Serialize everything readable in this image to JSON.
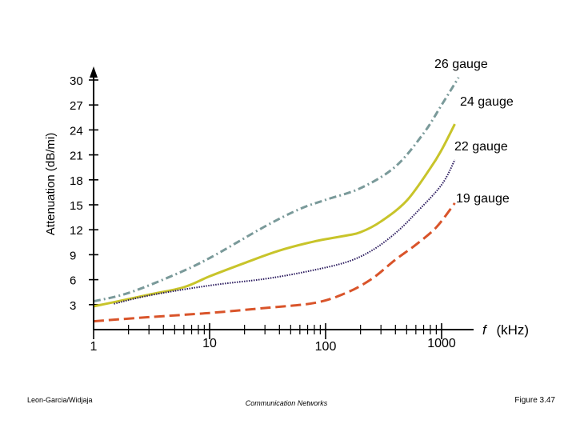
{
  "chart_data": {
    "type": "line",
    "title": "",
    "xlabel_italic": "f",
    "xlabel_unit": "(kHz)",
    "ylabel": "Attenuation (dB/mi)",
    "x_scale": "log",
    "xlim": [
      1,
      2000
    ],
    "ylim": [
      0,
      30
    ],
    "x_ticks": [
      {
        "value": 1,
        "label": "1"
      },
      {
        "value": 10,
        "label": "10"
      },
      {
        "value": 100,
        "label": "100"
      },
      {
        "value": 1000,
        "label": "1000"
      }
    ],
    "y_ticks": [
      {
        "value": 3,
        "label": "3"
      },
      {
        "value": 6,
        "label": "6"
      },
      {
        "value": 9,
        "label": "9"
      },
      {
        "value": 12,
        "label": "12"
      },
      {
        "value": 15,
        "label": "15"
      },
      {
        "value": 18,
        "label": "18"
      },
      {
        "value": 21,
        "label": "21"
      },
      {
        "value": 24,
        "label": "24"
      },
      {
        "value": 27,
        "label": "27"
      },
      {
        "value": 30,
        "label": "30"
      }
    ],
    "series": [
      {
        "name": "26 gauge",
        "color": "#7a9a9a",
        "style": "dashdot",
        "points": [
          [
            1,
            3.4
          ],
          [
            2,
            4.4
          ],
          [
            5,
            6.6
          ],
          [
            10,
            8.6
          ],
          [
            30,
            12.4
          ],
          [
            60,
            14.5
          ],
          [
            100,
            15.6
          ],
          [
            200,
            17.0
          ],
          [
            400,
            19.6
          ],
          [
            700,
            23.6
          ],
          [
            1000,
            27.0
          ],
          [
            1400,
            30.3
          ]
        ]
      },
      {
        "name": "24 gauge",
        "color": "#c8c42a",
        "style": "solid",
        "points": [
          [
            1,
            2.8
          ],
          [
            1.5,
            3.3
          ],
          [
            3,
            4.2
          ],
          [
            6,
            5.1
          ],
          [
            10,
            6.4
          ],
          [
            20,
            8.0
          ],
          [
            40,
            9.5
          ],
          [
            80,
            10.6
          ],
          [
            150,
            11.3
          ],
          [
            200,
            11.7
          ],
          [
            300,
            13.0
          ],
          [
            500,
            15.5
          ],
          [
            800,
            19.4
          ],
          [
            1000,
            21.6
          ],
          [
            1300,
            24.7
          ]
        ]
      },
      {
        "name": "22 gauge",
        "color": "#2a1a5e",
        "style": "dotted",
        "points": [
          [
            1.5,
            3.1
          ],
          [
            3,
            4.1
          ],
          [
            10,
            5.3
          ],
          [
            30,
            6.1
          ],
          [
            70,
            7.0
          ],
          [
            150,
            8.1
          ],
          [
            250,
            9.5
          ],
          [
            400,
            11.6
          ],
          [
            600,
            14.0
          ],
          [
            1000,
            17.4
          ],
          [
            1300,
            20.4
          ]
        ]
      },
      {
        "name": "19 gauge",
        "color": "#d9542a",
        "style": "dashed",
        "points": [
          [
            1,
            1.0
          ],
          [
            3,
            1.5
          ],
          [
            10,
            2.0
          ],
          [
            30,
            2.6
          ],
          [
            80,
            3.2
          ],
          [
            150,
            4.4
          ],
          [
            250,
            6.1
          ],
          [
            400,
            8.4
          ],
          [
            600,
            10.2
          ],
          [
            900,
            12.3
          ],
          [
            1300,
            15.2
          ]
        ]
      }
    ],
    "footer": {
      "left": "Leon-Garcia/Widjaja",
      "center": "Communication Networks",
      "right": "Figure 3.47"
    }
  }
}
